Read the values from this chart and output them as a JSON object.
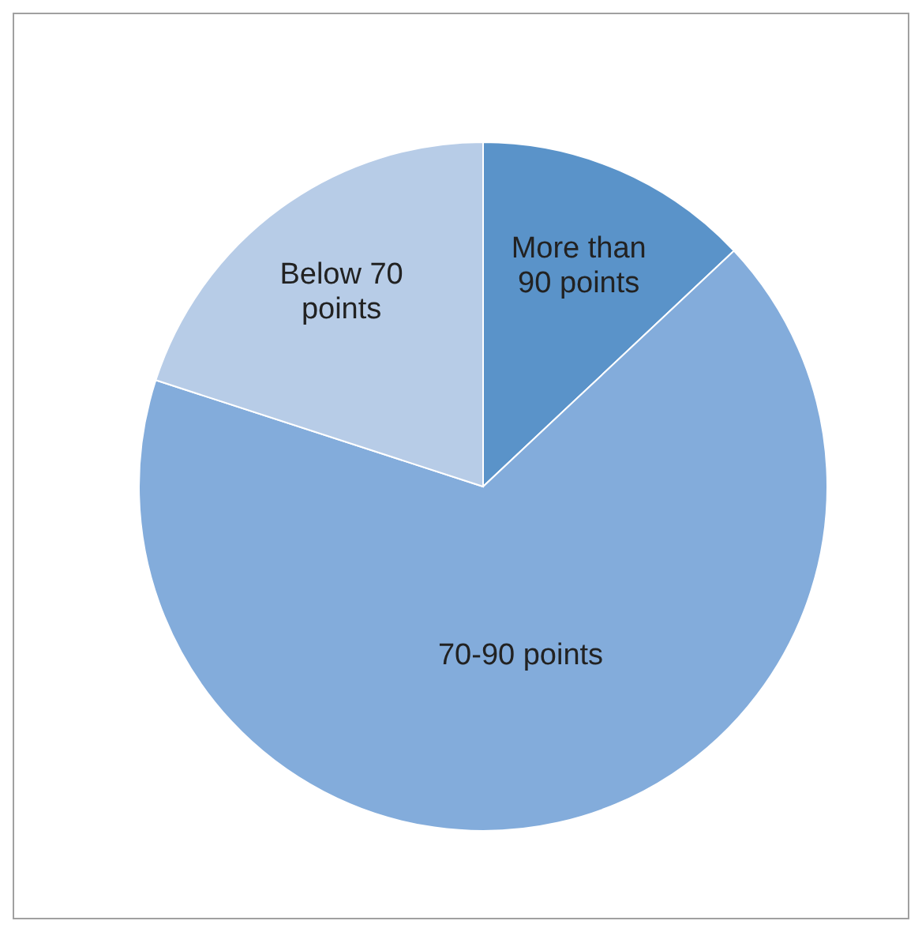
{
  "chart_data": {
    "type": "pie",
    "categories": [
      "More than 90 points",
      "70-90 points",
      "Below 70 points"
    ],
    "values": [
      13,
      67,
      20
    ],
    "colors": [
      "#5a93c9",
      "#83acdb",
      "#b7cce7"
    ]
  }
}
